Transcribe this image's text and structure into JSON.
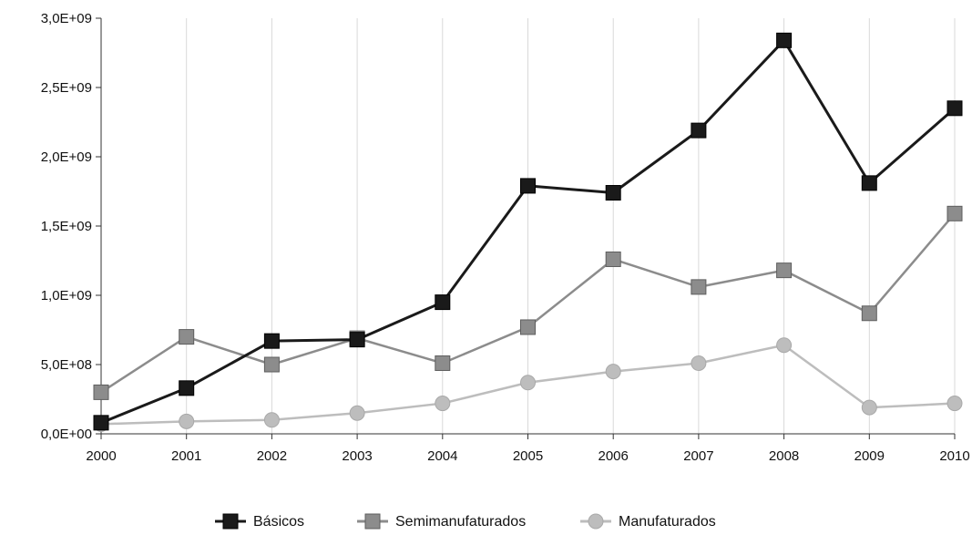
{
  "chart_data": {
    "type": "line",
    "title": "",
    "xlabel": "",
    "ylabel": "",
    "x": [
      "2000",
      "2001",
      "2002",
      "2003",
      "2004",
      "2005",
      "2006",
      "2007",
      "2008",
      "2009",
      "2010"
    ],
    "ylim": [
      0,
      3000000000
    ],
    "y_ticks": [
      0,
      500000000,
      1000000000,
      1500000000,
      2000000000,
      2500000000,
      3000000000
    ],
    "y_tick_labels": [
      "0,0E+00",
      "5,0E+08",
      "1,0E+09",
      "1,5E+09",
      "2,0E+09",
      "2,5E+09",
      "3,0E+09"
    ],
    "grid": {
      "horizontal": false,
      "vertical": true
    },
    "legend_position": "bottom",
    "series": [
      {
        "name": "Básicos",
        "color": "#1a1a1a",
        "marker": "square",
        "values": [
          80000000,
          330000000,
          670000000,
          680000000,
          950000000,
          1790000000,
          1740000000,
          2190000000,
          2840000000,
          1810000000,
          2350000000
        ]
      },
      {
        "name": "Semimanufaturados",
        "color": "#8c8c8c",
        "marker": "square",
        "values": [
          300000000,
          700000000,
          500000000,
          690000000,
          510000000,
          770000000,
          1260000000,
          1060000000,
          1180000000,
          870000000,
          1590000000
        ]
      },
      {
        "name": "Manufaturados",
        "color": "#bdbdbd",
        "marker": "circle",
        "values": [
          70000000,
          90000000,
          100000000,
          150000000,
          220000000,
          370000000,
          450000000,
          510000000,
          640000000,
          190000000,
          220000000
        ]
      }
    ]
  }
}
